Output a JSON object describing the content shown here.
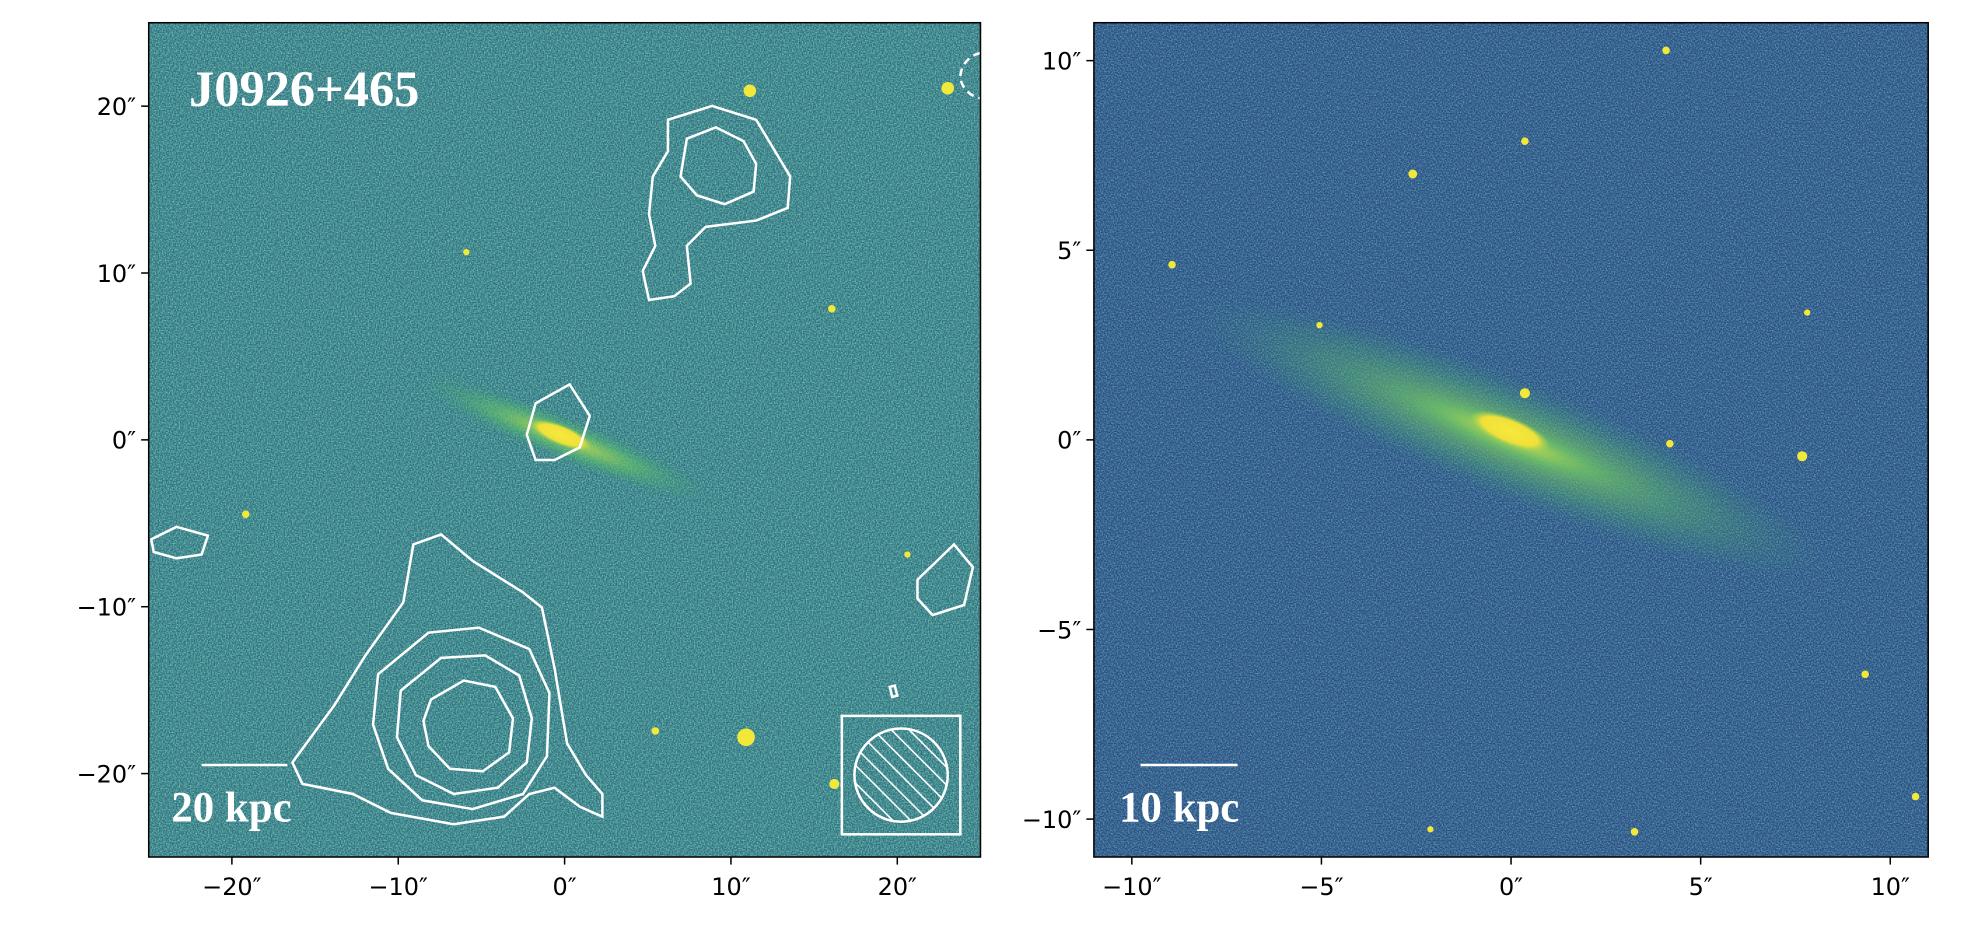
{
  "chart_data": [
    {
      "type": "image",
      "title": "J0926+465",
      "scale_bar_label": "20 kpc",
      "xlim": [
        -25,
        25
      ],
      "ylim": [
        -25,
        25
      ],
      "xticks": [
        {
          "value": -20,
          "label": "−20″"
        },
        {
          "value": -10,
          "label": "−10″"
        },
        {
          "value": 0,
          "label": "0″"
        },
        {
          "value": 10,
          "label": "10″"
        },
        {
          "value": 20,
          "label": "20″"
        }
      ],
      "yticks": [
        {
          "value": -20,
          "label": "−20″"
        },
        {
          "value": -10,
          "label": "−10″"
        },
        {
          "value": 0,
          "label": "0″"
        },
        {
          "value": 10,
          "label": "10″"
        },
        {
          "value": 20,
          "label": "20″"
        }
      ]
    },
    {
      "type": "image",
      "scale_bar_label": "10 kpc",
      "xlim": [
        -11,
        11
      ],
      "ylim": [
        -11,
        11
      ],
      "xticks": [
        {
          "value": -10,
          "label": "−10″"
        },
        {
          "value": -5,
          "label": "−5″"
        },
        {
          "value": 0,
          "label": "0″"
        },
        {
          "value": 5,
          "label": "5″"
        },
        {
          "value": 10,
          "label": "10″"
        }
      ],
      "yticks": [
        {
          "value": -10,
          "label": "−10″"
        },
        {
          "value": -5,
          "label": "−5″"
        },
        {
          "value": 0,
          "label": "0″"
        },
        {
          "value": 5,
          "label": "5″"
        },
        {
          "value": 10,
          "label": "10″"
        }
      ]
    }
  ]
}
